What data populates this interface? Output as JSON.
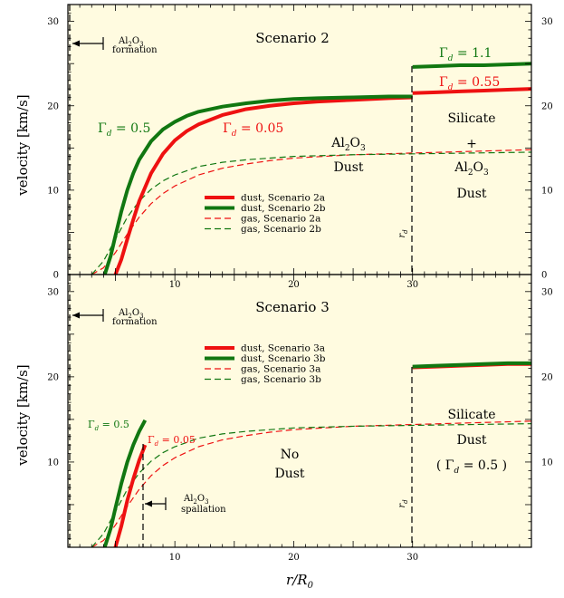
{
  "chart_data": [
    {
      "type": "line",
      "panel": "top",
      "title": "Scenario 2",
      "ylabel": "velocity [km/s]",
      "xlabel": "",
      "xlim": [
        1,
        40
      ],
      "ylim": [
        0,
        32
      ],
      "xticks": [
        10,
        20,
        30
      ],
      "yticks": [
        0,
        10,
        20,
        30
      ],
      "legend_position": "center",
      "colors": {
        "a": "#ee1111",
        "b": "#117711"
      },
      "series": [
        {
          "name": "dust, Scenario 2a",
          "style": "solid",
          "color": "#ee1111",
          "x": [
            5.0,
            5.5,
            6,
            6.5,
            7,
            8,
            9,
            10,
            11,
            12,
            14,
            16,
            18,
            20,
            22,
            25,
            28,
            30
          ],
          "y": [
            0,
            1.8,
            4.2,
            6.5,
            8.7,
            12.0,
            14.3,
            15.9,
            17.0,
            17.8,
            18.9,
            19.6,
            20.0,
            20.3,
            20.5,
            20.7,
            20.9,
            21.0
          ]
        },
        {
          "name": "dust, Scenario 2a",
          "style": "solid",
          "color": "#ee1111",
          "x": [
            30,
            32,
            34,
            36,
            38,
            40
          ],
          "y": [
            21.5,
            21.6,
            21.7,
            21.8,
            21.9,
            22.0
          ]
        },
        {
          "name": "dust, Scenario 2b",
          "style": "solid",
          "color": "#117711",
          "x": [
            4.1,
            4.6,
            5,
            5.5,
            6,
            6.5,
            7,
            8,
            9,
            10,
            11,
            12,
            14,
            16,
            18,
            20,
            22,
            25,
            28,
            30
          ],
          "y": [
            0,
            2.2,
            4.6,
            7.5,
            10.0,
            12.0,
            13.6,
            15.8,
            17.2,
            18.1,
            18.8,
            19.3,
            19.9,
            20.3,
            20.6,
            20.8,
            20.9,
            21.0,
            21.1,
            21.1
          ]
        },
        {
          "name": "dust, Scenario 2b",
          "style": "solid",
          "color": "#117711",
          "x": [
            30,
            32,
            34,
            36,
            38,
            40
          ],
          "y": [
            24.6,
            24.7,
            24.8,
            24.8,
            24.9,
            25.0
          ]
        },
        {
          "name": "gas, Scenario 2a",
          "style": "dashed",
          "color": "#ee1111",
          "x": [
            3.0,
            4,
            5,
            6,
            7,
            8,
            9,
            10,
            12,
            14,
            16,
            18,
            20,
            25,
            30,
            35,
            40
          ],
          "y": [
            0,
            0.8,
            2.6,
            4.8,
            6.8,
            8.4,
            9.6,
            10.5,
            11.8,
            12.6,
            13.1,
            13.5,
            13.8,
            14.2,
            14.4,
            14.6,
            14.8
          ]
        },
        {
          "name": "gas, Scenario 2b",
          "style": "dashed",
          "color": "#117711",
          "x": [
            3.0,
            4,
            5,
            6,
            7,
            8,
            9,
            10,
            12,
            14,
            16,
            18,
            20,
            25,
            30,
            35,
            40
          ],
          "y": [
            0,
            1.6,
            4.2,
            6.8,
            8.7,
            10.1,
            11.1,
            11.8,
            12.8,
            13.3,
            13.6,
            13.8,
            14.0,
            14.2,
            14.3,
            14.4,
            14.5
          ]
        }
      ],
      "annotations": [
        {
          "text": "Γd = 0.5",
          "color": "#117711"
        },
        {
          "text": "Γd = 0.05",
          "color": "#ee1111"
        },
        {
          "text": "Γd = 1.1",
          "color": "#117711"
        },
        {
          "text": "Γd = 0.55",
          "color": "#ee1111"
        },
        {
          "text": "rd"
        }
      ]
    },
    {
      "type": "line",
      "panel": "bottom",
      "title": "Scenario 3",
      "ylabel": "velocity [km/s]",
      "xlabel": "r/R0",
      "xlim": [
        1,
        40
      ],
      "ylim": [
        0,
        32
      ],
      "xticks": [
        10,
        20,
        30
      ],
      "yticks": [
        10,
        20,
        30
      ],
      "legend_position": "center",
      "series": [
        {
          "name": "dust, Scenario 3a",
          "style": "solid",
          "color": "#ee1111",
          "x": [
            5.0,
            5.5,
            6,
            6.5,
            7,
            7.5
          ],
          "y": [
            0,
            2.5,
            5.5,
            8.0,
            10.2,
            12.0
          ]
        },
        {
          "name": "dust, Scenario 3a",
          "style": "solid",
          "color": "#ee1111",
          "x": [
            30,
            32,
            34,
            36,
            38,
            40
          ],
          "y": [
            21.1,
            21.2,
            21.3,
            21.4,
            21.5,
            21.5
          ]
        },
        {
          "name": "dust, Scenario 3b",
          "style": "solid",
          "color": "#117711",
          "x": [
            4.1,
            4.6,
            5,
            5.5,
            6,
            6.5,
            7,
            7.5
          ],
          "y": [
            0,
            2.2,
            4.6,
            7.5,
            10.0,
            12.0,
            13.6,
            14.9
          ]
        },
        {
          "name": "dust, Scenario 3b",
          "style": "solid",
          "color": "#117711",
          "x": [
            30,
            32,
            34,
            36,
            38,
            40
          ],
          "y": [
            21.2,
            21.3,
            21.4,
            21.5,
            21.6,
            21.6
          ]
        },
        {
          "name": "gas, Scenario 3a",
          "style": "dashed",
          "color": "#ee1111",
          "x": [
            3.0,
            4,
            5,
            6,
            7,
            8,
            9,
            10,
            12,
            14,
            16,
            18,
            20,
            25,
            30,
            35,
            40
          ],
          "y": [
            0,
            0.8,
            2.6,
            4.8,
            6.8,
            8.4,
            9.6,
            10.5,
            11.8,
            12.6,
            13.1,
            13.5,
            13.8,
            14.2,
            14.4,
            14.6,
            14.8
          ]
        },
        {
          "name": "gas, Scenario 3b",
          "style": "dashed",
          "color": "#117711",
          "x": [
            3.0,
            4,
            5,
            6,
            7,
            8,
            9,
            10,
            12,
            14,
            16,
            18,
            20,
            25,
            30,
            35,
            40
          ],
          "y": [
            0,
            1.6,
            4.2,
            6.8,
            8.7,
            10.1,
            11.1,
            11.8,
            12.8,
            13.3,
            13.6,
            13.8,
            14.0,
            14.2,
            14.3,
            14.4,
            14.5
          ]
        }
      ],
      "annotations": [
        {
          "text": "Γd = 0.5",
          "color": "#117711"
        },
        {
          "text": "Γd = 0.05",
          "color": "#ee1111"
        },
        {
          "text": "rd"
        }
      ]
    }
  ],
  "text": {
    "top_scenario": "Scenario 2",
    "bottom_scenario": "Scenario 3",
    "ylabel": "velocity [km/s]",
    "xlabel": "r/R0",
    "al2o3": "Al2O3",
    "formation": "formation",
    "spallation": "spallation",
    "dust": "Dust",
    "silicate": "Silicate",
    "plus": "+",
    "no": "No",
    "gamma_half_paren": "( Γd = 0.5 )"
  }
}
